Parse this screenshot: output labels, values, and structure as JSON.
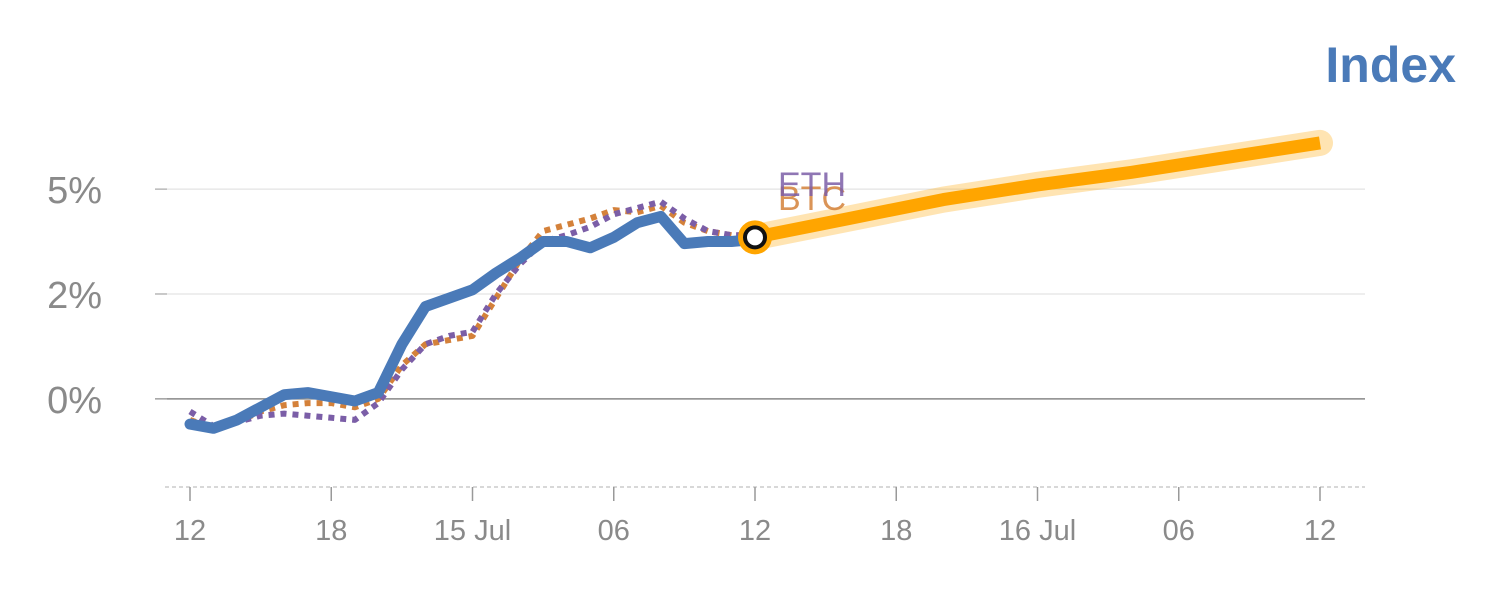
{
  "chart_data": {
    "type": "line",
    "title": "Index",
    "xlabel": "",
    "ylabel": "",
    "x_ticks": [
      "12",
      "18",
      "15 Jul",
      "06",
      "12",
      "18",
      "16 Jul",
      "06",
      "12"
    ],
    "y_ticks": [
      "5%",
      "2%",
      "0%"
    ],
    "y_tick_values": [
      5,
      2.5,
      0
    ],
    "ylim": [
      -2.1,
      7.6
    ],
    "grid": true,
    "legend": "none",
    "series": [
      {
        "name": "",
        "style": "solid-thick",
        "color": "#4a7ab8",
        "x": [
          0,
          0.5,
          1,
          1.5,
          2,
          2.5,
          3,
          3.5,
          4,
          4.5,
          5,
          5.5,
          6,
          6.5,
          7,
          7.5,
          8,
          8.5,
          9,
          9.5,
          10,
          10.5,
          11,
          11.5,
          12
        ],
        "y": [
          -0.6,
          -0.7,
          -0.5,
          -0.2,
          0.1,
          0.15,
          0.05,
          -0.05,
          0.15,
          1.3,
          2.2,
          2.4,
          2.6,
          3.0,
          3.35,
          3.75,
          3.75,
          3.6,
          3.85,
          4.2,
          4.35,
          3.7,
          3.75,
          3.75,
          3.8
        ]
      },
      {
        "name": "BTC",
        "style": "dotted",
        "color": "#d4813a",
        "x": [
          0,
          0.5,
          1,
          1.5,
          2,
          2.5,
          3,
          3.5,
          4,
          4.5,
          5,
          5.5,
          6,
          6.5,
          7,
          7.5,
          8,
          8.5,
          9,
          9.5,
          10,
          10.5,
          11,
          11.5,
          12
        ],
        "y": [
          -0.5,
          -0.7,
          -0.55,
          -0.3,
          -0.15,
          -0.1,
          -0.1,
          -0.2,
          0,
          0.8,
          1.3,
          1.4,
          1.5,
          2.4,
          3.3,
          4.0,
          4.15,
          4.3,
          4.5,
          4.45,
          4.6,
          4.2,
          4.0,
          3.9,
          3.9
        ]
      },
      {
        "name": "ETH",
        "style": "dotted",
        "color": "#7b5ea7",
        "x": [
          0,
          0.5,
          1,
          1.5,
          2,
          2.5,
          3,
          3.5,
          4,
          4.5,
          5,
          5.5,
          6,
          6.5,
          7,
          7.5,
          8,
          8.5,
          9,
          9.5,
          10,
          10.5,
          11,
          11.5,
          12
        ],
        "y": [
          -0.3,
          -0.65,
          -0.55,
          -0.4,
          -0.35,
          -0.4,
          -0.45,
          -0.5,
          -0.1,
          0.7,
          1.3,
          1.5,
          1.6,
          2.5,
          3.2,
          3.75,
          3.9,
          4.1,
          4.4,
          4.55,
          4.7,
          4.3,
          4.0,
          3.9,
          3.9
        ]
      },
      {
        "name": "",
        "style": "forecast",
        "color": "#ffa500",
        "x": [
          12,
          14,
          16,
          18,
          20,
          22,
          24
        ],
        "y": [
          3.85,
          4.3,
          4.75,
          5.1,
          5.4,
          5.75,
          6.1
        ]
      }
    ],
    "current_point": {
      "x": 12,
      "y": 3.85
    },
    "colors": {
      "title": "#4a7ab8",
      "axis_text": "#8a8a8a",
      "grid": "#e3e3e3",
      "zero_line": "#888888"
    }
  }
}
